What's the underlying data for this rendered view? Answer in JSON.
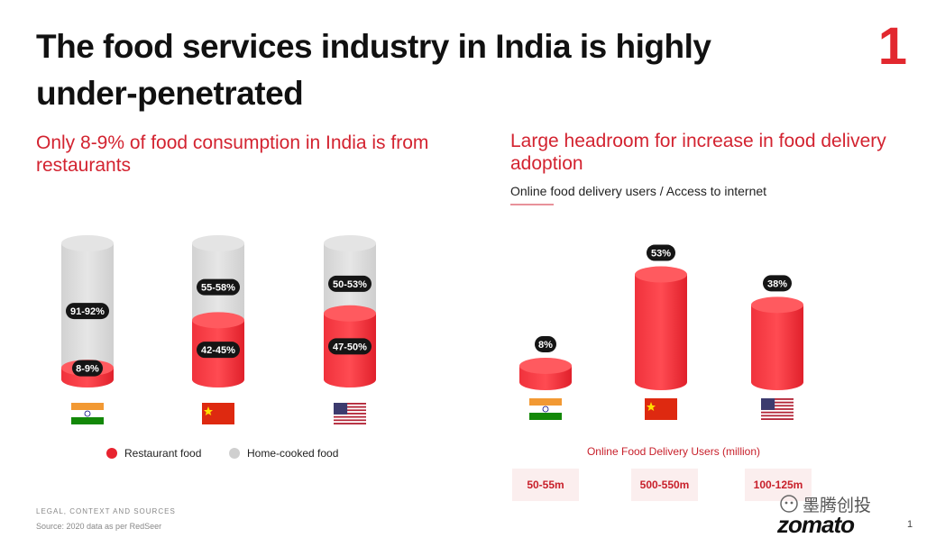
{
  "title": "The food services industry in India is highly under-penetrated",
  "page_number": "1",
  "left_subtitle": "Only 8-9% of food consumption in India is from restaurants",
  "right_subtitle": "Large headroom for increase in food delivery adoption",
  "right_caption": "Online food delivery users / Access to internet",
  "legend": {
    "restaurant": "Restaurant food",
    "home": "Home-cooked food"
  },
  "users_title": "Online Food Delivery Users (million)",
  "users": [
    "50-55m",
    "500-550m",
    "100-125m"
  ],
  "legal": "LEGAL, CONTEXT AND SOURCES",
  "source": "Source: 2020 data as per RedSeer",
  "watermark": "墨腾创投",
  "logo": "zomato",
  "footer_page": "1",
  "colors": {
    "red": "#e8232f",
    "grey": "#d6d6d6",
    "accent": "#d32330"
  },
  "chart_data": [
    {
      "type": "bar",
      "categories": [
        "India",
        "China",
        "USA"
      ],
      "series": [
        {
          "name": "Restaurant food",
          "values": [
            8.5,
            43.5,
            48.5
          ],
          "labels": [
            "8-9%",
            "42-45%",
            "47-50%"
          ]
        },
        {
          "name": "Home-cooked food",
          "values": [
            91.5,
            56.5,
            51.5
          ],
          "labels": [
            "91-92%",
            "55-58%",
            "50-53%"
          ]
        }
      ],
      "stacked": true,
      "ylim": [
        0,
        100
      ]
    },
    {
      "type": "bar",
      "categories": [
        "India",
        "China",
        "USA"
      ],
      "values": [
        8,
        53,
        38
      ],
      "labels": [
        "8%",
        "53%",
        "38%"
      ],
      "ylim": [
        0,
        55
      ]
    }
  ]
}
